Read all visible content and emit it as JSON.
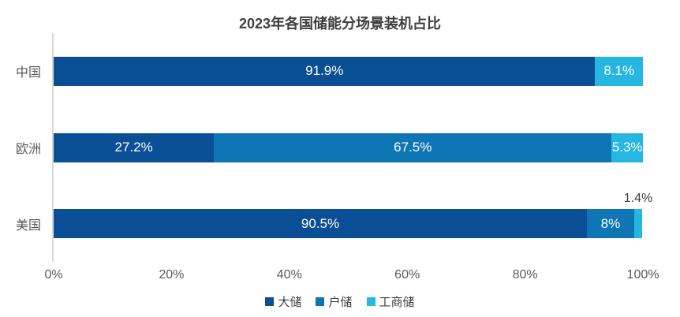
{
  "chart_data": {
    "type": "bar",
    "orientation": "horizontal",
    "stacked": true,
    "title": "2023年各国储能分场景装机占比",
    "xlabel": "",
    "ylabel": "",
    "x_range": [
      0,
      100
    ],
    "x_axis": {
      "ticks": [
        "0%",
        "20%",
        "40%",
        "60%",
        "80%",
        "100%"
      ],
      "values": [
        0,
        20,
        40,
        60,
        80,
        100
      ]
    },
    "grid": false,
    "legend_position": "bottom",
    "categories": [
      "中国",
      "欧洲",
      "美国"
    ],
    "series": [
      {
        "name": "大储",
        "color": "#0A4F96",
        "values": [
          91.9,
          27.2,
          90.5
        ]
      },
      {
        "name": "户储",
        "color": "#0F76B6",
        "values": [
          0,
          67.5,
          8
        ]
      },
      {
        "name": "工商储",
        "color": "#26B6E2",
        "values": [
          8.1,
          5.3,
          1.4
        ]
      }
    ],
    "rows": [
      {
        "category": "中国",
        "segments": [
          {
            "series": "大储",
            "value": 91.9,
            "label": "91.9%",
            "label_position": "inside"
          },
          {
            "series": "户储",
            "value": 0,
            "label": "",
            "label_position": "none"
          },
          {
            "series": "工商储",
            "value": 8.1,
            "label": "8.1%",
            "label_position": "inside"
          }
        ]
      },
      {
        "category": "欧洲",
        "segments": [
          {
            "series": "大储",
            "value": 27.2,
            "label": "27.2%",
            "label_position": "inside"
          },
          {
            "series": "户储",
            "value": 67.5,
            "label": "67.5%",
            "label_position": "inside"
          },
          {
            "series": "工商储",
            "value": 5.3,
            "label": "5.3%",
            "label_position": "inside"
          }
        ]
      },
      {
        "category": "美国",
        "segments": [
          {
            "series": "大储",
            "value": 90.5,
            "label": "90.5%",
            "label_position": "inside"
          },
          {
            "series": "户储",
            "value": 8,
            "label": "8%",
            "label_position": "inside"
          },
          {
            "series": "工商储",
            "value": 1.4,
            "label": "1.4%",
            "label_position": "above"
          }
        ]
      }
    ],
    "colors": {
      "axis_line": "#D9D9D9",
      "tick_text": "#595959",
      "category_text": "#595959",
      "title_text": "#3F3F3F",
      "inside_label_text": "#FFFFFF",
      "outside_label_text": "#404040"
    }
  }
}
